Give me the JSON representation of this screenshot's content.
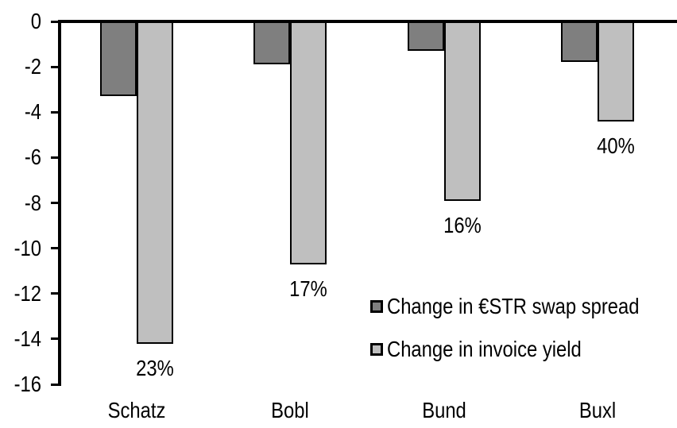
{
  "chart_data": {
    "type": "bar",
    "title": "",
    "xlabel": "",
    "ylabel": "",
    "categories": [
      "Schatz",
      "Bobl",
      "Bund",
      "Buxl"
    ],
    "series": [
      {
        "name": "Change in €STR swap spread",
        "color": "#7F7F7F",
        "values": [
          -3.3,
          -1.9,
          -1.3,
          -1.8
        ]
      },
      {
        "name": "Change in invoice yield",
        "color": "#BFBFBF",
        "values": [
          -14.2,
          -10.7,
          -7.9,
          -4.4
        ],
        "data_labels": [
          "23%",
          "17%",
          "16%",
          "40%"
        ]
      }
    ],
    "ylim": [
      -16,
      0
    ],
    "yticks": [
      0,
      -2,
      -4,
      -6,
      -8,
      -10,
      -12,
      -14,
      -16
    ],
    "grid": false,
    "axis_color": "#000000",
    "background_color": "#FFFFFF",
    "legend_position": "inside-center-right"
  }
}
